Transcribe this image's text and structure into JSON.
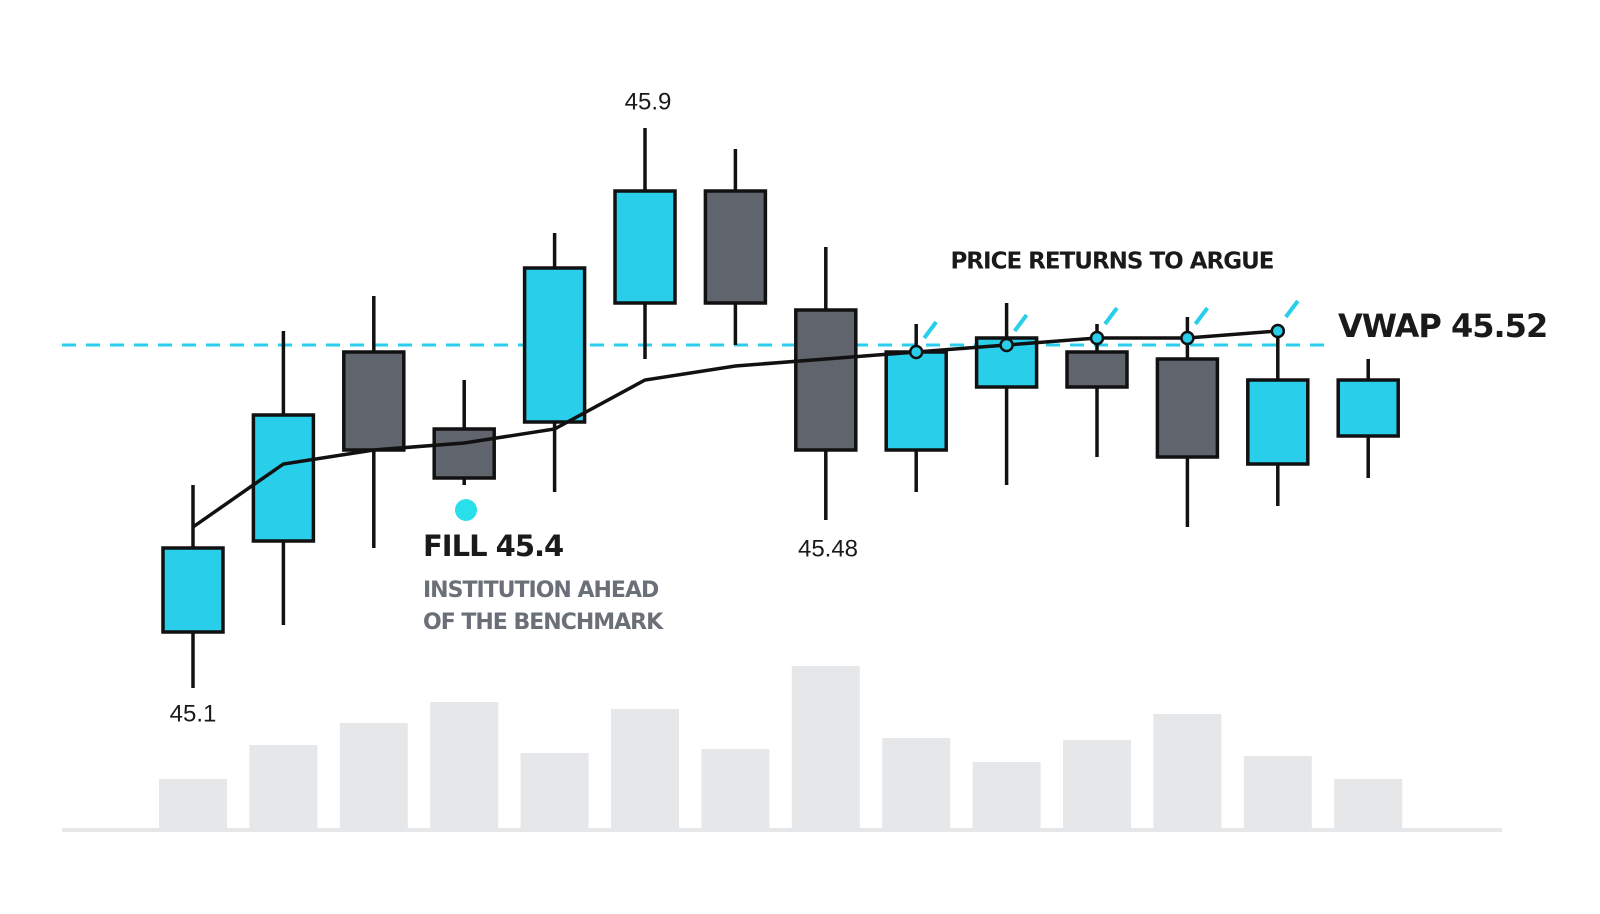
{
  "chart_data": {
    "type": "candlestick",
    "candles": {
      "open": [
        45.18,
        45.31,
        45.58,
        45.47,
        45.48,
        45.65,
        45.81,
        45.64,
        45.44,
        45.53,
        45.58,
        45.57,
        45.42,
        45.46
      ],
      "high": [
        45.39,
        45.61,
        45.66,
        45.54,
        45.75,
        45.9,
        45.87,
        45.73,
        45.62,
        45.65,
        45.62,
        45.63,
        45.6,
        45.57
      ],
      "low": [
        45.1,
        45.19,
        45.3,
        45.39,
        45.38,
        45.57,
        45.59,
        45.34,
        45.38,
        45.39,
        45.43,
        45.33,
        45.36,
        45.4
      ],
      "close": [
        45.3,
        45.49,
        45.44,
        45.4,
        45.7,
        45.81,
        45.65,
        45.44,
        45.58,
        45.6,
        45.53,
        45.43,
        45.54,
        45.54
      ]
    },
    "up_color": "#29cfea",
    "down_color": "#5f646d",
    "vwap": {
      "values": [
        45.33,
        45.42,
        45.44,
        45.45,
        45.47,
        45.54,
        45.56,
        45.57,
        45.58,
        45.59,
        45.6,
        45.6,
        45.61,
        null
      ],
      "color": "#111111"
    },
    "reference_level": {
      "value": 45.59,
      "color": "#29cfea"
    },
    "ylim": [
      45.0,
      46.0
    ],
    "volume": {
      "values": [
        49,
        83,
        105,
        126,
        75,
        119,
        79,
        162,
        90,
        66,
        88,
        114,
        72,
        49
      ],
      "color": "#e6e7e9",
      "ylim": [
        0,
        180
      ]
    },
    "annotations": {
      "high_label": "45.9",
      "low_label": "45.1",
      "pullback_label": "45.48",
      "returns": "PRICE RETURNS TO ARGUE",
      "vwap_label": "VWAP 45.52",
      "fill_label": "FILL 45.4",
      "fill_note_1": "INSTITUTION AHEAD",
      "fill_note_2": "OF THE BENCHMARK"
    }
  }
}
